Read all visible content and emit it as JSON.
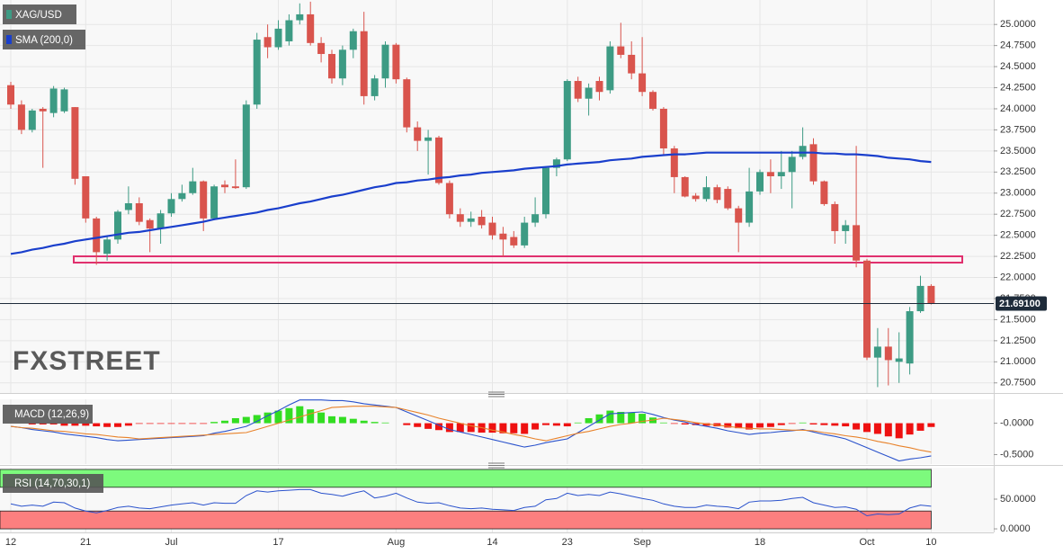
{
  "chart_data": [
    {
      "type": "candlestick",
      "categories": [
        "12",
        null,
        null,
        null,
        null,
        null,
        null,
        "21",
        null,
        null,
        null,
        null,
        null,
        null,
        null,
        "Jul",
        null,
        null,
        null,
        null,
        null,
        null,
        null,
        null,
        null,
        "17",
        null,
        null,
        null,
        null,
        null,
        null,
        null,
        null,
        null,
        null,
        "Aug",
        null,
        null,
        null,
        null,
        null,
        null,
        null,
        null,
        "14",
        null,
        null,
        null,
        null,
        null,
        null,
        "23",
        null,
        null,
        null,
        null,
        null,
        null,
        "Sep",
        null,
        null,
        null,
        null,
        null,
        null,
        null,
        null,
        null,
        null,
        "18",
        null,
        null,
        null,
        null,
        null,
        null,
        null,
        null,
        null,
        "Oct",
        null,
        null,
        null,
        null,
        null,
        "10"
      ],
      "series": [
        {
          "name": "XAG/USD",
          "type": "candlestick",
          "up_color": "#3d9b84",
          "down_color": "#d9544d",
          "open": [
            24.28,
            24.05,
            23.75,
            24.0,
            23.95,
            23.97,
            24.02,
            23.2,
            22.7,
            22.28,
            22.45,
            22.8,
            22.88,
            22.68,
            22.58,
            22.76,
            22.93,
            23.0,
            23.14,
            22.7,
            23.1,
            23.08,
            23.07,
            24.05,
            24.85,
            24.73,
            24.8,
            25.05,
            25.12,
            24.78,
            24.65,
            24.36,
            24.7,
            24.92,
            24.15,
            24.36,
            24.76,
            24.35,
            23.78,
            23.62,
            23.66,
            23.12,
            22.75,
            22.66,
            22.72,
            22.65,
            22.52,
            22.48,
            22.38,
            22.65,
            22.75,
            23.3,
            23.4,
            24.33,
            24.12,
            24.33,
            24.22,
            24.74,
            24.64,
            24.42,
            24.2,
            24.0,
            23.53,
            23.19,
            22.97,
            22.93,
            23.07,
            23.05,
            22.82,
            22.65,
            23.02,
            23.25,
            23.2,
            23.25,
            23.43,
            23.58,
            23.14,
            22.87,
            22.55,
            22.62,
            22.2,
            21.05,
            21.18,
            21.0,
            20.98,
            21.6,
            21.9
          ],
          "high": [
            24.32,
            24.1,
            24.0,
            24.02,
            24.27,
            24.25,
            24.02,
            23.2,
            22.72,
            22.5,
            22.8,
            23.08,
            22.95,
            22.7,
            22.8,
            23.0,
            23.1,
            23.3,
            23.15,
            23.1,
            23.15,
            23.4,
            24.1,
            24.9,
            25.0,
            25.05,
            25.12,
            25.25,
            25.27,
            24.85,
            24.7,
            24.75,
            24.95,
            25.15,
            24.4,
            24.8,
            24.78,
            24.37,
            23.85,
            23.75,
            23.68,
            23.15,
            22.82,
            22.78,
            22.8,
            22.72,
            22.6,
            22.55,
            22.72,
            22.95,
            23.32,
            23.42,
            24.35,
            24.38,
            24.3,
            24.38,
            24.8,
            25.02,
            24.8,
            24.85,
            24.22,
            24.02,
            23.56,
            23.2,
            23.0,
            23.2,
            23.1,
            23.08,
            22.85,
            23.3,
            23.28,
            23.4,
            23.5,
            23.5,
            23.78,
            23.65,
            23.15,
            22.9,
            22.68,
            23.56,
            22.22,
            21.4,
            21.4,
            21.35,
            21.65,
            22.02,
            21.92
          ],
          "low": [
            24.0,
            23.7,
            23.72,
            23.3,
            23.9,
            23.95,
            23.1,
            22.65,
            22.15,
            22.2,
            22.4,
            22.75,
            22.62,
            22.3,
            22.4,
            22.72,
            22.9,
            22.98,
            22.55,
            22.68,
            23.0,
            23.05,
            23.05,
            24.0,
            24.6,
            24.7,
            24.75,
            25.0,
            24.75,
            24.55,
            24.3,
            24.28,
            24.6,
            24.05,
            24.1,
            24.25,
            24.3,
            23.72,
            23.5,
            23.22,
            23.1,
            22.7,
            22.6,
            22.6,
            22.58,
            22.45,
            22.25,
            22.35,
            22.35,
            22.6,
            22.7,
            23.2,
            23.38,
            24.08,
            23.92,
            24.1,
            24.18,
            24.6,
            24.35,
            24.15,
            23.98,
            23.45,
            23.0,
            22.95,
            22.9,
            22.9,
            22.88,
            22.8,
            22.3,
            22.6,
            22.98,
            23.0,
            23.05,
            22.82,
            23.4,
            23.1,
            22.85,
            22.4,
            22.4,
            22.12,
            21.02,
            20.7,
            20.72,
            20.75,
            20.85,
            21.58,
            21.68
          ],
          "close": [
            24.05,
            23.75,
            23.98,
            23.97,
            24.24,
            24.23,
            23.17,
            22.7,
            22.3,
            22.45,
            22.78,
            22.88,
            22.66,
            22.58,
            22.76,
            22.93,
            23.0,
            23.14,
            22.7,
            23.08,
            23.07,
            23.06,
            24.05,
            24.82,
            24.73,
            24.95,
            25.05,
            25.12,
            24.78,
            24.65,
            24.36,
            24.7,
            24.92,
            24.15,
            24.36,
            24.76,
            24.35,
            23.78,
            23.62,
            23.66,
            23.12,
            22.75,
            22.66,
            22.7,
            22.62,
            22.5,
            22.45,
            22.38,
            22.65,
            22.75,
            23.3,
            23.4,
            24.33,
            24.12,
            24.25,
            24.2,
            24.74,
            24.64,
            24.42,
            24.2,
            24.0,
            23.53,
            23.19,
            22.96,
            22.93,
            23.07,
            22.92,
            22.82,
            22.65,
            23.02,
            23.25,
            23.2,
            23.25,
            23.43,
            23.56,
            23.14,
            22.87,
            22.55,
            22.62,
            22.2,
            21.05,
            21.18,
            21.02,
            21.04,
            21.6,
            21.9,
            21.69
          ]
        },
        {
          "name": "SMA (200,0)",
          "type": "line",
          "color": "#1a3fcc",
          "values": [
            22.28,
            22.3,
            22.33,
            22.35,
            22.38,
            22.4,
            22.43,
            22.45,
            22.47,
            22.49,
            22.51,
            22.53,
            22.54,
            22.56,
            22.58,
            22.6,
            22.62,
            22.64,
            22.66,
            22.69,
            22.71,
            22.73,
            22.75,
            22.77,
            22.8,
            22.82,
            22.85,
            22.88,
            22.9,
            22.93,
            22.96,
            22.98,
            23.01,
            23.04,
            23.07,
            23.09,
            23.12,
            23.13,
            23.15,
            23.16,
            23.18,
            23.19,
            23.21,
            23.22,
            23.24,
            23.25,
            23.26,
            23.27,
            23.29,
            23.3,
            23.31,
            23.32,
            23.34,
            23.35,
            23.36,
            23.37,
            23.39,
            23.4,
            23.41,
            23.43,
            23.44,
            23.45,
            23.46,
            23.46,
            23.47,
            23.48,
            23.48,
            23.48,
            23.48,
            23.48,
            23.48,
            23.48,
            23.48,
            23.48,
            23.48,
            23.48,
            23.47,
            23.47,
            23.46,
            23.46,
            23.45,
            23.44,
            23.42,
            23.41,
            23.4,
            23.38,
            23.37
          ]
        }
      ],
      "last_price": {
        "value": 21.691,
        "label": "21.69100"
      },
      "watermark": "FXSTREET",
      "ylim": [
        20.63,
        25.29
      ],
      "yticks": [
        {
          "value": 20.75,
          "label": "20.7500"
        },
        {
          "value": 21,
          "label": "21.0000"
        },
        {
          "value": 21.25,
          "label": "21.2500"
        },
        {
          "value": 21.5,
          "label": "21.5000"
        },
        {
          "value": 21.75,
          "label": "21.7500"
        },
        {
          "value": 22,
          "label": "22.0000"
        },
        {
          "value": 22.25,
          "label": "22.2500"
        },
        {
          "value": 22.5,
          "label": "22.5000"
        },
        {
          "value": 22.75,
          "label": "22.7500"
        },
        {
          "value": 23,
          "label": "23.0000"
        },
        {
          "value": 23.25,
          "label": "23.2500"
        },
        {
          "value": 23.5,
          "label": "23.5000"
        },
        {
          "value": 23.75,
          "label": "23.7500"
        },
        {
          "value": 24,
          "label": "24.0000"
        },
        {
          "value": 24.25,
          "label": "24.2500"
        },
        {
          "value": 24.5,
          "label": "24.5000"
        },
        {
          "value": 24.75,
          "label": "24.7500"
        },
        {
          "value": 25,
          "label": "25.0000"
        }
      ],
      "grid": true
    },
    {
      "type": "macd",
      "label": "MACD (12,26,9)",
      "histogram": {
        "up_color": "#33dd22",
        "down_color": "#ee1111",
        "values": [
          0,
          0,
          -0.02,
          -0.02,
          -0.02,
          -0.04,
          -0.04,
          -0.04,
          -0.05,
          -0.06,
          -0.06,
          -0.04,
          -0.01,
          -0.01,
          -0.01,
          -0.01,
          -0.01,
          -0.01,
          -0.01,
          0.02,
          0.04,
          0.08,
          0.1,
          0.13,
          0.17,
          0.2,
          0.24,
          0.27,
          0.22,
          0.17,
          0.11,
          0.1,
          0.07,
          0.04,
          0.02,
          0.01,
          0,
          -0.03,
          -0.06,
          -0.09,
          -0.11,
          -0.14,
          -0.14,
          -0.14,
          -0.15,
          -0.15,
          -0.16,
          -0.16,
          -0.17,
          -0.1,
          -0.03,
          -0.04,
          -0.05,
          0.01,
          0.08,
          0.14,
          0.2,
          0.18,
          0.17,
          0.15,
          0.09,
          0.01,
          -0.01,
          -0.02,
          -0.03,
          -0.04,
          -0.05,
          -0.07,
          -0.08,
          -0.1,
          -0.07,
          -0.06,
          -0.03,
          -0.01,
          0.01,
          -0.02,
          -0.03,
          -0.04,
          -0.05,
          -0.1,
          -0.14,
          -0.17,
          -0.21,
          -0.24,
          -0.18,
          -0.12,
          -0.06
        ]
      },
      "series": [
        {
          "color": "#2a52cc",
          "values": [
            -0.05,
            -0.07,
            -0.1,
            -0.12,
            -0.14,
            -0.17,
            -0.19,
            -0.21,
            -0.23,
            -0.26,
            -0.28,
            -0.27,
            -0.26,
            -0.25,
            -0.24,
            -0.23,
            -0.22,
            -0.21,
            -0.2,
            -0.16,
            -0.13,
            -0.09,
            -0.05,
            0.03,
            0.12,
            0.2,
            0.29,
            0.37,
            0.37,
            0.37,
            0.36,
            0.36,
            0.34,
            0.31,
            0.29,
            0.27,
            0.25,
            0.18,
            0.11,
            0.04,
            -0.03,
            -0.1,
            -0.14,
            -0.18,
            -0.22,
            -0.26,
            -0.3,
            -0.34,
            -0.38,
            -0.35,
            -0.31,
            -0.28,
            -0.25,
            -0.15,
            -0.05,
            0.05,
            0.15,
            0.16,
            0.17,
            0.18,
            0.14,
            0.09,
            0.05,
            0.02,
            -0.02,
            -0.05,
            -0.08,
            -0.12,
            -0.15,
            -0.18,
            -0.16,
            -0.15,
            -0.13,
            -0.12,
            -0.1,
            -0.14,
            -0.18,
            -0.21,
            -0.25,
            -0.32,
            -0.39,
            -0.46,
            -0.53,
            -0.6,
            -0.57,
            -0.55,
            -0.52
          ]
        },
        {
          "color": "#e8822a",
          "values": [
            -0.05,
            -0.07,
            -0.08,
            -0.1,
            -0.12,
            -0.13,
            -0.15,
            -0.17,
            -0.18,
            -0.2,
            -0.22,
            -0.23,
            -0.25,
            -0.24,
            -0.23,
            -0.22,
            -0.21,
            -0.2,
            -0.19,
            -0.18,
            -0.17,
            -0.16,
            -0.15,
            -0.1,
            -0.05,
            0.0,
            0.05,
            0.1,
            0.15,
            0.2,
            0.25,
            0.26,
            0.27,
            0.27,
            0.27,
            0.26,
            0.25,
            0.21,
            0.17,
            0.13,
            0.08,
            0.04,
            0.0,
            -0.04,
            -0.07,
            -0.11,
            -0.14,
            -0.18,
            -0.21,
            -0.25,
            -0.28,
            -0.24,
            -0.2,
            -0.16,
            -0.13,
            -0.09,
            -0.05,
            -0.02,
            0.0,
            0.03,
            0.05,
            0.08,
            0.06,
            0.04,
            0.01,
            -0.01,
            -0.03,
            -0.05,
            -0.07,
            -0.08,
            -0.09,
            -0.09,
            -0.1,
            -0.11,
            -0.11,
            -0.12,
            -0.15,
            -0.17,
            -0.2,
            -0.22,
            -0.25,
            -0.29,
            -0.32,
            -0.36,
            -0.39,
            -0.43,
            -0.46
          ]
        }
      ],
      "ylim": [
        -0.65,
        0.38
      ],
      "yticks": [
        {
          "value": 0,
          "label": "-0.0000"
        },
        {
          "value": -0.5,
          "label": "-0.5000"
        }
      ]
    },
    {
      "type": "rsi",
      "label": "RSI (14,70,30,1)",
      "color": "#2a52cc",
      "values": [
        42,
        38,
        40,
        38,
        45,
        44,
        35,
        30,
        27,
        31,
        36,
        38,
        35,
        34,
        37,
        40,
        42,
        44,
        40,
        44,
        43,
        43,
        56,
        64,
        62,
        64,
        65,
        66,
        66,
        60,
        58,
        55,
        60,
        64,
        52,
        55,
        60,
        52,
        45,
        43,
        44,
        39,
        35,
        34,
        35,
        33,
        32,
        31,
        36,
        38,
        49,
        51,
        60,
        56,
        58,
        56,
        62,
        59,
        55,
        51,
        48,
        42,
        38,
        36,
        36,
        40,
        38,
        37,
        34,
        45,
        47,
        47,
        48,
        51,
        53,
        44,
        40,
        36,
        37,
        33,
        22,
        25,
        24,
        25,
        35,
        40,
        38
      ],
      "bands": [
        {
          "from": 70,
          "to": 100,
          "color": "#7dfa7d"
        },
        {
          "from": 0,
          "to": 30,
          "color": "#fc7f7f"
        }
      ],
      "ylim": [
        -6,
        103
      ],
      "yticks": [
        {
          "value": 50,
          "label": "50.0000"
        },
        {
          "value": 0,
          "label": "0.0000"
        }
      ]
    }
  ]
}
